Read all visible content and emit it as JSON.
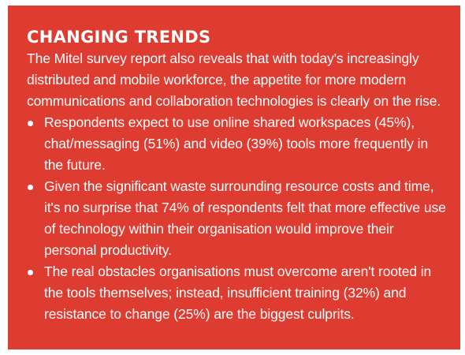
{
  "panel": {
    "title": "CHANGING TRENDS",
    "intro": "The Mitel survey report also reveals that with today's increasingly distributed and mobile workforce, the appetite for more modern communications and collaboration technologies is clearly on the rise.",
    "bullets": [
      {
        "text": "Respondents expect to use online shared workspaces (45%), chat/messaging (51%) and video (39%) tools more frequently in the future."
      },
      {
        "text": "Given the significant waste surrounding resource costs and time, it's no surprise that 74% of respondents felt that more effective use of technology within their organisation would improve their personal productivity."
      },
      {
        "text": "The real obstacles organisations must overcome aren't rooted in the tools themselves; instead, insufficient training (32%) and resistance to change (25%) are the biggest culprits."
      }
    ],
    "colors": {
      "background": "#de3b31",
      "text": "#ffffff"
    }
  }
}
